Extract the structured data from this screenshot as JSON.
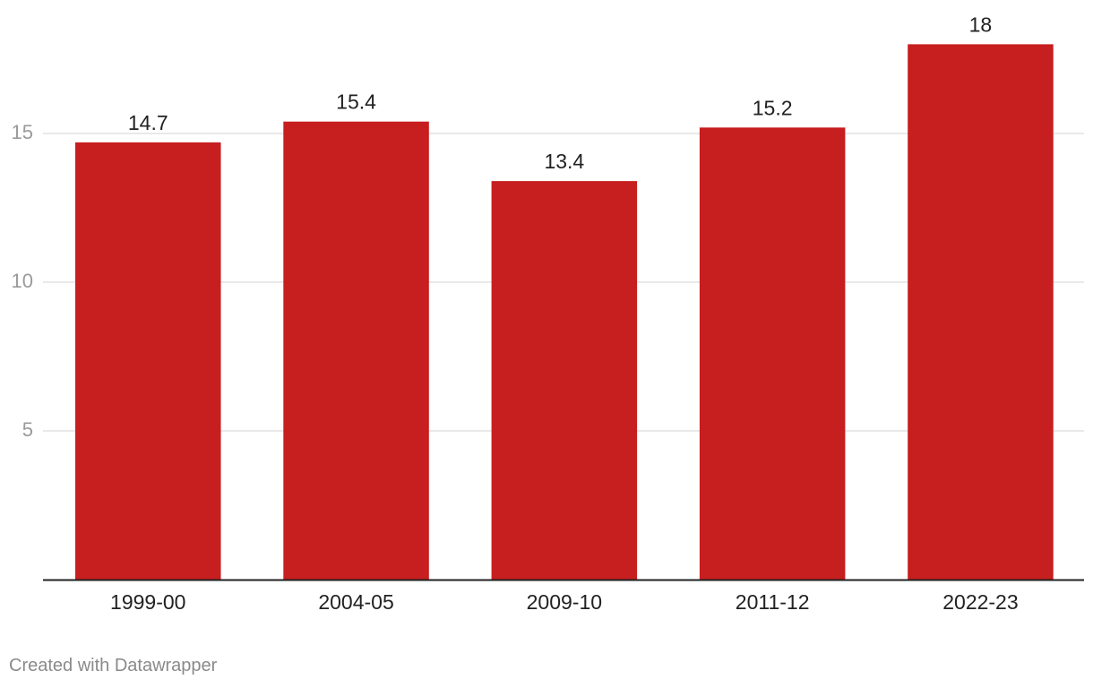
{
  "chart_data": {
    "type": "bar",
    "categories": [
      "1999-00",
      "2004-05",
      "2009-10",
      "2011-12",
      "2022-23"
    ],
    "values": [
      14.7,
      15.4,
      13.4,
      15.2,
      18
    ],
    "value_labels": [
      "14.7",
      "15.4",
      "13.4",
      "15.2",
      "18"
    ],
    "yticks": [
      5,
      10,
      15
    ],
    "ylim": [
      0,
      18
    ],
    "grid": true,
    "bar_color": "#c71e1f",
    "title": "",
    "xlabel": "",
    "ylabel": ""
  },
  "footer": {
    "credit": "Created with Datawrapper"
  }
}
